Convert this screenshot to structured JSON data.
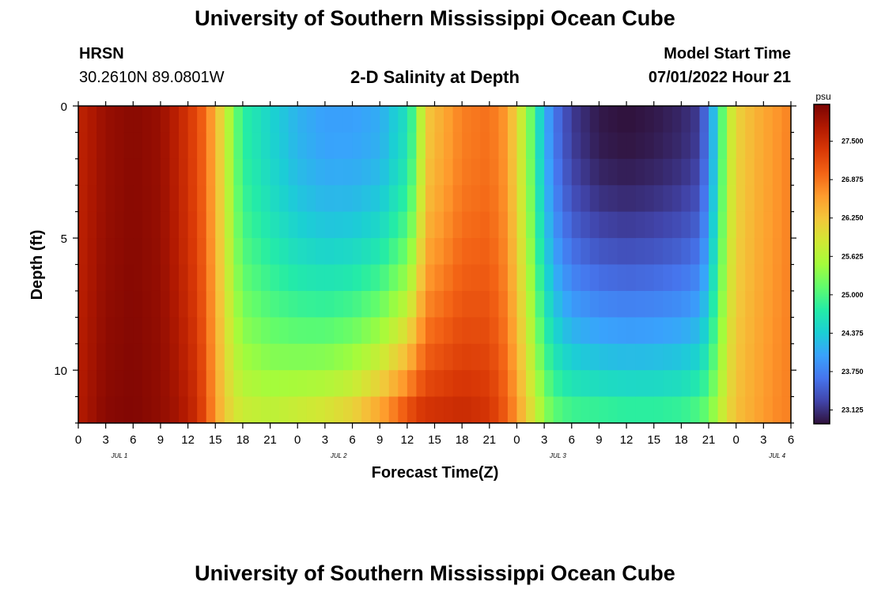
{
  "header": {
    "title": "University of Southern Mississippi Ocean Cube",
    "station": "HRSN",
    "coords": "30.2610N  89.0801W",
    "plot_title": "2-D Salinity at Depth",
    "model_start_label": "Model Start Time",
    "model_start_value": "07/01/2022 Hour 21"
  },
  "footer": {
    "title": "University of Southern Mississippi Ocean Cube"
  },
  "chart_data": {
    "type": "heatmap",
    "title": "2-D Salinity at Depth",
    "xlabel": "Forecast Time(Z)",
    "ylabel": "Depth (ft)",
    "x_range_hours": [
      0,
      78
    ],
    "x_step_hours": 1,
    "y_range_ft": [
      0,
      12
    ],
    "y_rows": 12,
    "x_tick_labels": [
      "0",
      "3",
      "6",
      "9",
      "12",
      "15",
      "18",
      "21",
      "0",
      "3",
      "6",
      "9",
      "12",
      "15",
      "18",
      "21",
      "0",
      "3",
      "6",
      "9",
      "12",
      "15",
      "18",
      "21",
      "0",
      "3",
      "6"
    ],
    "day_labels": [
      "JUL 1",
      "JUL 2",
      "JUL 3",
      "JUL 4"
    ],
    "y_tick_labels": [
      "0",
      "5",
      "10"
    ],
    "colorbar": {
      "unit": "psu",
      "range": [
        22.9,
        28.1
      ],
      "tick_labels": [
        "27.500",
        "26.875",
        "26.250",
        "25.625",
        "25.000",
        "24.375",
        "23.750",
        "23.125"
      ],
      "colors": [
        "#30123b",
        "#4145ab",
        "#4675ed",
        "#39a2fc",
        "#1bcfd4",
        "#24eca6",
        "#61fc6c",
        "#a4fc3b",
        "#d1e834",
        "#f3c63a",
        "#fe9b2d",
        "#f36315",
        "#d93806",
        "#b11901",
        "#7a0403"
      ]
    },
    "salinity_keyframes_psu": [
      {
        "hour": 0,
        "surface": 27.6,
        "bottom": 27.7
      },
      {
        "hour": 3,
        "surface": 27.9,
        "bottom": 28.0
      },
      {
        "hour": 6,
        "surface": 28.0,
        "bottom": 28.05
      },
      {
        "hour": 9,
        "surface": 27.9,
        "bottom": 27.95
      },
      {
        "hour": 11,
        "surface": 27.6,
        "bottom": 27.8
      },
      {
        "hour": 13,
        "surface": 27.2,
        "bottom": 27.5
      },
      {
        "hour": 14,
        "surface": 26.9,
        "bottom": 27.1
      },
      {
        "hour": 15,
        "surface": 26.4,
        "bottom": 26.6
      },
      {
        "hour": 16,
        "surface": 25.9,
        "bottom": 26.2
      },
      {
        "hour": 17,
        "surface": 25.3,
        "bottom": 25.95
      },
      {
        "hour": 18,
        "surface": 24.8,
        "bottom": 25.8
      },
      {
        "hour": 21,
        "surface": 24.45,
        "bottom": 25.7
      },
      {
        "hour": 24,
        "surface": 24.15,
        "bottom": 25.8
      },
      {
        "hour": 27,
        "surface": 24.0,
        "bottom": 25.9
      },
      {
        "hour": 30,
        "surface": 24.0,
        "bottom": 26.1
      },
      {
        "hour": 33,
        "surface": 24.1,
        "bottom": 26.5
      },
      {
        "hour": 36,
        "surface": 24.6,
        "bottom": 27.1
      },
      {
        "hour": 37,
        "surface": 25.2,
        "bottom": 27.3
      },
      {
        "hour": 38,
        "surface": 26.2,
        "bottom": 27.4
      },
      {
        "hour": 42,
        "surface": 26.8,
        "bottom": 27.5
      },
      {
        "hour": 45,
        "surface": 26.9,
        "bottom": 27.4
      },
      {
        "hour": 47,
        "surface": 26.6,
        "bottom": 27.0
      },
      {
        "hour": 48,
        "surface": 26.0,
        "bottom": 26.6
      },
      {
        "hour": 49,
        "surface": 25.6,
        "bottom": 26.2
      },
      {
        "hour": 50,
        "surface": 24.8,
        "bottom": 25.8
      },
      {
        "hour": 51,
        "surface": 24.2,
        "bottom": 25.4
      },
      {
        "hour": 52,
        "surface": 23.7,
        "bottom": 25.1
      },
      {
        "hour": 54,
        "surface": 23.2,
        "bottom": 24.9
      },
      {
        "hour": 57,
        "surface": 22.95,
        "bottom": 24.85
      },
      {
        "hour": 60,
        "surface": 22.9,
        "bottom": 24.8
      },
      {
        "hour": 63,
        "surface": 22.95,
        "bottom": 24.8
      },
      {
        "hour": 66,
        "surface": 23.05,
        "bottom": 24.85
      },
      {
        "hour": 68,
        "surface": 23.2,
        "bottom": 25.0
      },
      {
        "hour": 69,
        "surface": 23.8,
        "bottom": 25.2
      },
      {
        "hour": 70,
        "surface": 24.6,
        "bottom": 25.6
      },
      {
        "hour": 71,
        "surface": 25.6,
        "bottom": 26.0
      },
      {
        "hour": 72,
        "surface": 26.1,
        "bottom": 26.3
      },
      {
        "hour": 74,
        "surface": 26.4,
        "bottom": 26.5
      },
      {
        "hour": 76,
        "surface": 26.6,
        "bottom": 26.7
      },
      {
        "hour": 78,
        "surface": 26.8,
        "bottom": 26.8
      }
    ]
  }
}
